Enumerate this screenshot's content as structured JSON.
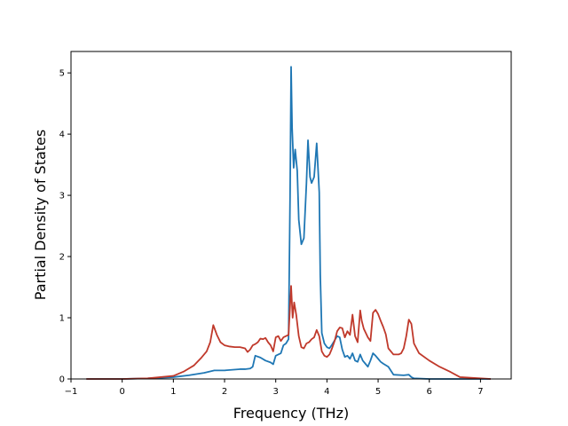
{
  "chart_data": {
    "type": "line",
    "xlabel": "Frequency (THz)",
    "ylabel": "Partial Density of States",
    "xlim": [
      -1.0,
      7.6
    ],
    "ylim": [
      0,
      5.35
    ],
    "xticks": [
      -1,
      0,
      1,
      2,
      3,
      4,
      5,
      6,
      7
    ],
    "yticks": [
      0,
      1,
      2,
      3,
      4,
      5
    ],
    "grid": false,
    "series": [
      {
        "color": "#1f77b4",
        "x": [
          -0.7,
          0.0,
          0.5,
          1.0,
          1.3,
          1.6,
          1.8,
          2.0,
          2.3,
          2.4,
          2.5,
          2.55,
          2.6,
          2.7,
          2.8,
          2.9,
          2.95,
          3.0,
          3.1,
          3.15,
          3.2,
          3.25,
          3.28,
          3.3,
          3.32,
          3.35,
          3.38,
          3.42,
          3.45,
          3.5,
          3.55,
          3.6,
          3.63,
          3.67,
          3.7,
          3.75,
          3.8,
          3.85,
          3.87,
          3.9,
          3.95,
          4.0,
          4.05,
          4.1,
          4.15,
          4.2,
          4.25,
          4.3,
          4.35,
          4.4,
          4.45,
          4.5,
          4.55,
          4.6,
          4.65,
          4.7,
          4.75,
          4.8,
          4.85,
          4.9,
          4.95,
          5.0,
          5.05,
          5.1,
          5.2,
          5.3,
          5.5,
          5.6,
          5.65,
          5.7,
          6.0,
          6.5,
          7.2
        ],
        "values": [
          0,
          0,
          0.01,
          0.03,
          0.06,
          0.1,
          0.14,
          0.14,
          0.16,
          0.16,
          0.17,
          0.2,
          0.38,
          0.35,
          0.3,
          0.27,
          0.24,
          0.38,
          0.42,
          0.55,
          0.58,
          0.65,
          3.0,
          5.1,
          4.1,
          3.45,
          3.75,
          3.4,
          2.6,
          2.2,
          2.3,
          3.2,
          3.9,
          3.3,
          3.2,
          3.3,
          3.85,
          3.05,
          1.7,
          0.75,
          0.58,
          0.52,
          0.5,
          0.56,
          0.63,
          0.7,
          0.68,
          0.48,
          0.36,
          0.38,
          0.33,
          0.42,
          0.3,
          0.28,
          0.4,
          0.3,
          0.25,
          0.2,
          0.3,
          0.42,
          0.38,
          0.33,
          0.28,
          0.25,
          0.2,
          0.07,
          0.06,
          0.07,
          0.03,
          0.01,
          0.0,
          0.0,
          0.0
        ]
      },
      {
        "color": "#c0392b",
        "x": [
          -0.7,
          0.0,
          0.5,
          1.0,
          1.2,
          1.4,
          1.55,
          1.65,
          1.72,
          1.78,
          1.85,
          1.92,
          2.0,
          2.1,
          2.2,
          2.3,
          2.4,
          2.45,
          2.5,
          2.55,
          2.6,
          2.65,
          2.7,
          2.75,
          2.8,
          2.85,
          2.9,
          2.95,
          3.0,
          3.05,
          3.1,
          3.15,
          3.2,
          3.25,
          3.28,
          3.3,
          3.33,
          3.36,
          3.4,
          3.45,
          3.5,
          3.55,
          3.6,
          3.65,
          3.7,
          3.75,
          3.8,
          3.85,
          3.9,
          3.95,
          4.0,
          4.05,
          4.1,
          4.15,
          4.2,
          4.25,
          4.3,
          4.35,
          4.4,
          4.45,
          4.5,
          4.55,
          4.6,
          4.65,
          4.68,
          4.72,
          4.76,
          4.8,
          4.85,
          4.9,
          4.95,
          5.0,
          5.05,
          5.1,
          5.15,
          5.2,
          5.3,
          5.4,
          5.45,
          5.5,
          5.55,
          5.6,
          5.65,
          5.7,
          5.8,
          6.0,
          6.2,
          6.4,
          6.6,
          7.2
        ],
        "values": [
          0,
          0,
          0.01,
          0.05,
          0.12,
          0.22,
          0.35,
          0.45,
          0.6,
          0.88,
          0.72,
          0.6,
          0.55,
          0.53,
          0.52,
          0.52,
          0.5,
          0.44,
          0.48,
          0.55,
          0.57,
          0.6,
          0.66,
          0.65,
          0.67,
          0.6,
          0.55,
          0.45,
          0.68,
          0.7,
          0.62,
          0.68,
          0.7,
          0.72,
          1.2,
          1.52,
          1.0,
          1.25,
          1.05,
          0.7,
          0.52,
          0.5,
          0.58,
          0.6,
          0.65,
          0.68,
          0.8,
          0.7,
          0.45,
          0.38,
          0.36,
          0.4,
          0.5,
          0.62,
          0.78,
          0.84,
          0.83,
          0.68,
          0.78,
          0.72,
          1.05,
          0.7,
          0.6,
          1.12,
          0.95,
          0.82,
          0.75,
          0.68,
          0.62,
          1.08,
          1.13,
          1.06,
          0.95,
          0.85,
          0.73,
          0.5,
          0.4,
          0.4,
          0.42,
          0.5,
          0.7,
          0.97,
          0.9,
          0.58,
          0.42,
          0.3,
          0.2,
          0.12,
          0.03,
          0.0
        ]
      }
    ]
  }
}
